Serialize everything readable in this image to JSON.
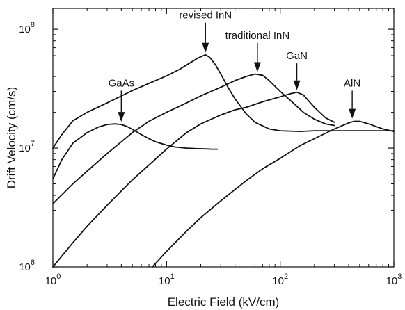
{
  "chart_data": {
    "type": "line",
    "title": "",
    "xlabel": "Electric Field (kV/cm)",
    "ylabel": "Drift Velocity (cm/s)",
    "xscale": "log",
    "yscale": "log",
    "xlim": [
      1,
      1000
    ],
    "ylim": [
      1000000,
      150000000
    ],
    "grid": false,
    "x_ticks": [
      {
        "value": 1,
        "base": "10",
        "exp": "0"
      },
      {
        "value": 10,
        "base": "10",
        "exp": "1"
      },
      {
        "value": 100,
        "base": "10",
        "exp": "2"
      },
      {
        "value": 1000,
        "base": "10",
        "exp": "3"
      }
    ],
    "y_ticks": [
      {
        "value": 1000000,
        "base": "10",
        "exp": "6"
      },
      {
        "value": 10000000,
        "base": "10",
        "exp": "7"
      },
      {
        "value": 100000000,
        "base": "10",
        "exp": "8"
      }
    ],
    "series": [
      {
        "x": [
          1,
          1.2,
          1.5,
          2,
          2.5,
          3,
          3.5,
          4,
          4.5,
          5,
          6,
          7,
          8,
          10,
          12,
          15,
          18,
          22,
          25,
          28
        ],
        "y": [
          5500000,
          8000000,
          11000000,
          13500000,
          15000000,
          15800000,
          16000000,
          15800000,
          15200000,
          14400000,
          13000000,
          12000000,
          11300000,
          10600000,
          10200000,
          10000000,
          9900000,
          9850000,
          9800000,
          9800000
        ]
      },
      {
        "x": [
          1,
          1.2,
          1.5,
          2,
          3,
          5,
          7,
          10,
          13,
          16,
          19,
          22,
          24,
          27,
          30,
          35,
          40,
          50,
          60,
          80,
          100,
          150,
          200,
          300,
          500,
          700,
          1000
        ],
        "y": [
          10000000,
          13000000,
          17000000,
          20000000,
          24000000,
          30500000,
          35000000,
          40500000,
          46000000,
          52000000,
          57500000,
          61000000,
          58000000,
          50000000,
          42000000,
          32000000,
          26000000,
          19500000,
          16500000,
          14500000,
          14000000,
          13800000,
          14000000,
          14000000,
          14000000,
          14000000,
          14000000
        ]
      },
      {
        "x": [
          1,
          1.5,
          2,
          3,
          5,
          7,
          10,
          15,
          20,
          30,
          40,
          50,
          60,
          70,
          80,
          100,
          130,
          160,
          200,
          250,
          300
        ],
        "y": [
          3400000,
          5000000,
          6400000,
          9000000,
          13500000,
          16800000,
          20000000,
          24000000,
          27500000,
          32500000,
          37000000,
          40000000,
          42000000,
          41000000,
          37000000,
          30000000,
          24000000,
          20000000,
          17500000,
          16000000,
          15500000
        ]
      },
      {
        "x": [
          1,
          1.5,
          2,
          3,
          5,
          7,
          10,
          15,
          20,
          30,
          40,
          50,
          70,
          100,
          120,
          140,
          160,
          200,
          250,
          300
        ],
        "y": [
          1000000,
          1600000,
          2200000,
          3300000,
          5400000,
          7200000,
          9800000,
          13500000,
          16000000,
          19000000,
          21000000,
          22000000,
          24500000,
          27000000,
          28500000,
          29500000,
          28000000,
          22000000,
          18000000,
          16500000
        ]
      },
      {
        "x": [
          7.5,
          10,
          15,
          20,
          30,
          50,
          70,
          100,
          150,
          200,
          300,
          400,
          450,
          500,
          600,
          800,
          1000
        ],
        "y": [
          1000000,
          1350000,
          2000000,
          2600000,
          3600000,
          5300000,
          6700000,
          8200000,
          10500000,
          12000000,
          14500000,
          16300000,
          16800000,
          16800000,
          16000000,
          14500000,
          13800000
        ]
      }
    ],
    "annotations": [
      {
        "text": "GaAs",
        "x": 4,
        "y": 16000000,
        "label_y": 33000000
      },
      {
        "text": "revised InN",
        "x": 22,
        "y": 61000000,
        "label_y": 123000000
      },
      {
        "text": "traditional InN",
        "x": 63,
        "y": 42000000,
        "label_y": 83000000
      },
      {
        "text": "GaN",
        "x": 140,
        "y": 29500000,
        "label_y": 56000000
      },
      {
        "text": "AlN",
        "x": 430,
        "y": 17000000,
        "label_y": 33000000
      }
    ]
  }
}
